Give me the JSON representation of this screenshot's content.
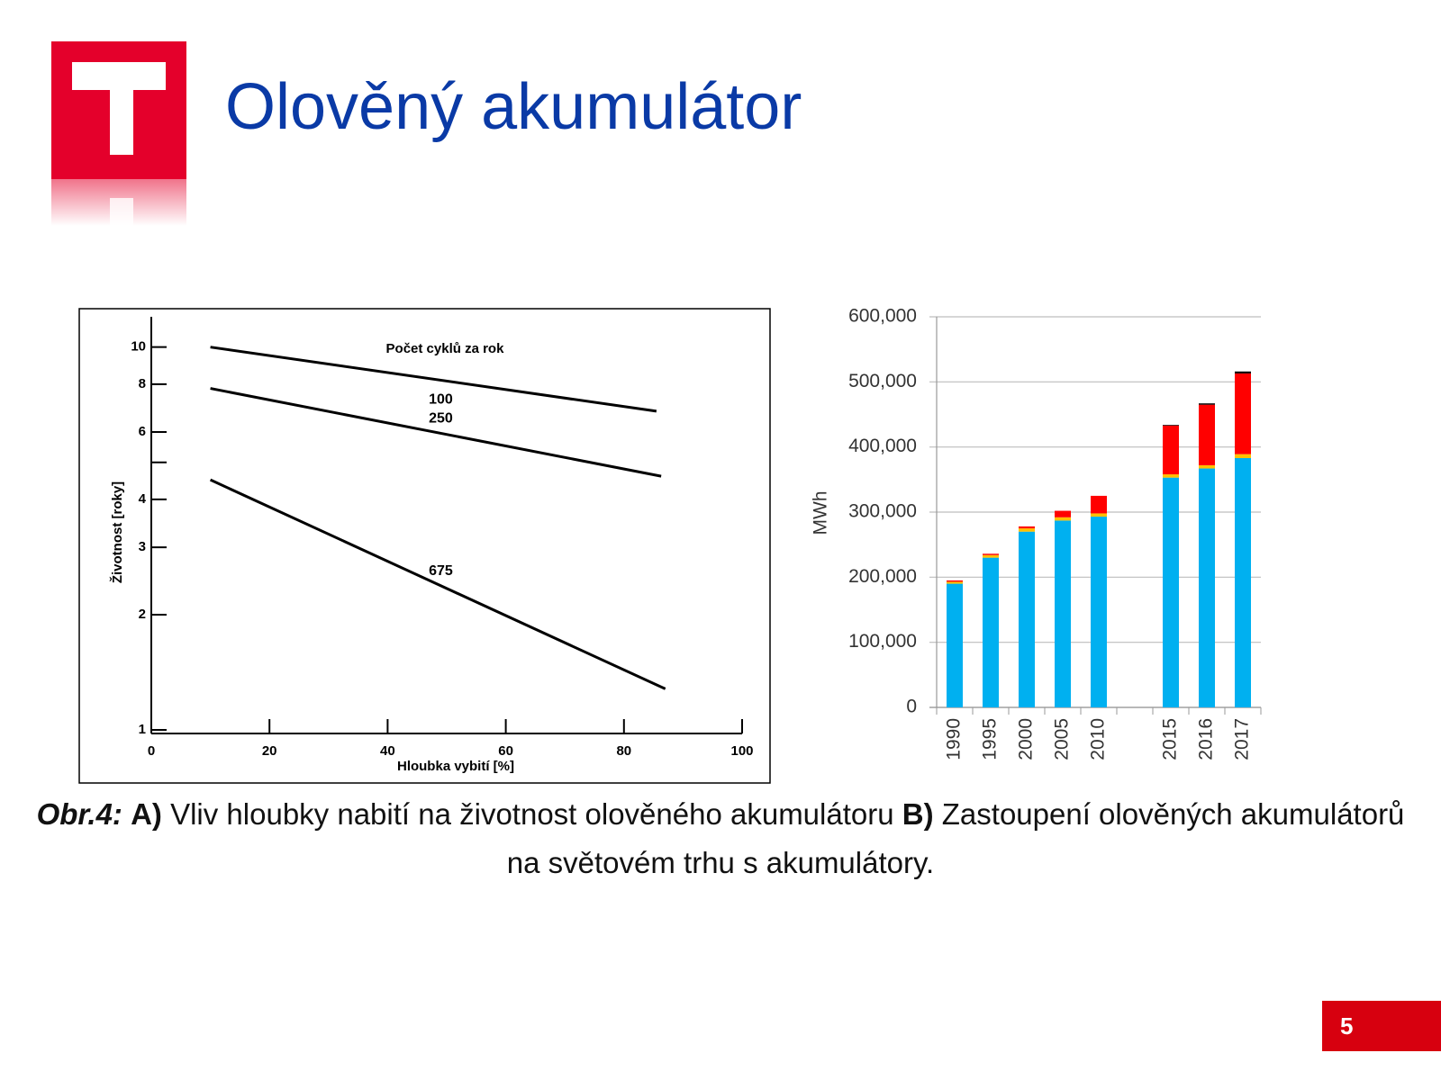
{
  "title": "Olověný akumulátor",
  "caption": [
    "Obr.4:",
    "A)",
    "Vliv hloubky nabití na životnost olověného akumulátoru",
    "B)",
    "Zastoupení olověných akumulátorů na světovém trhu s akumulátory."
  ],
  "page_number": "5",
  "chart_data": [
    {
      "type": "line",
      "legend_title": "Počet cyklů za rok",
      "x_label": "Hloubka vybití [%]",
      "y_label": "Životnost [roky]",
      "log_y": true,
      "xlim": [
        0,
        100
      ],
      "xticks": [
        0,
        20,
        40,
        60,
        80,
        100
      ],
      "ylim": [
        1,
        12
      ],
      "yticks": [
        1,
        2,
        3,
        4,
        {
          "value": 5,
          "label": null
        },
        6,
        8,
        10
      ],
      "series": [
        {
          "name": "100",
          "color": "#000000",
          "x": [
            10,
            85.5
          ],
          "values": [
            10,
            6.8
          ]
        },
        {
          "name": "250",
          "color": "#000000",
          "x": [
            10,
            86.3
          ],
          "values": [
            7.8,
            4.6
          ]
        },
        {
          "name": "675",
          "color": "#000000",
          "x": [
            10,
            87
          ],
          "values": [
            4.5,
            1.28
          ]
        }
      ]
    },
    {
      "type": "bar",
      "stacked": true,
      "y_label": "MWh",
      "grid": true,
      "categories": [
        "1990",
        "1995",
        "2000",
        "2005",
        "2010",
        null,
        "2015",
        "2016",
        "2017"
      ],
      "ylim": [
        0,
        600000
      ],
      "yticks": [
        0,
        {
          "value": 100000,
          "label": "100,000"
        },
        {
          "value": 200000,
          "label": "200,000"
        },
        {
          "value": 300000,
          "label": "300,000"
        },
        {
          "value": 400000,
          "label": "400,000"
        },
        {
          "value": 500000,
          "label": "500,000"
        },
        {
          "value": 600000,
          "label": "600,000"
        }
      ],
      "series": [
        {
          "color": "#00b0f0",
          "values": [
            190000,
            230000,
            270000,
            287000,
            293000,
            null,
            353000,
            367000,
            383000
          ]
        },
        {
          "color": "#ffc000",
          "values": [
            3000,
            4000,
            5000,
            5000,
            5000,
            null,
            5000,
            5000,
            6000
          ]
        },
        {
          "color": "#ff0000",
          "values": [
            2000,
            2000,
            3000,
            10000,
            27000,
            null,
            75000,
            93000,
            124000
          ]
        },
        {
          "color": "#000000",
          "values": [
            0,
            0,
            0,
            0,
            0,
            null,
            1000,
            2000,
            3000
          ]
        }
      ]
    }
  ]
}
